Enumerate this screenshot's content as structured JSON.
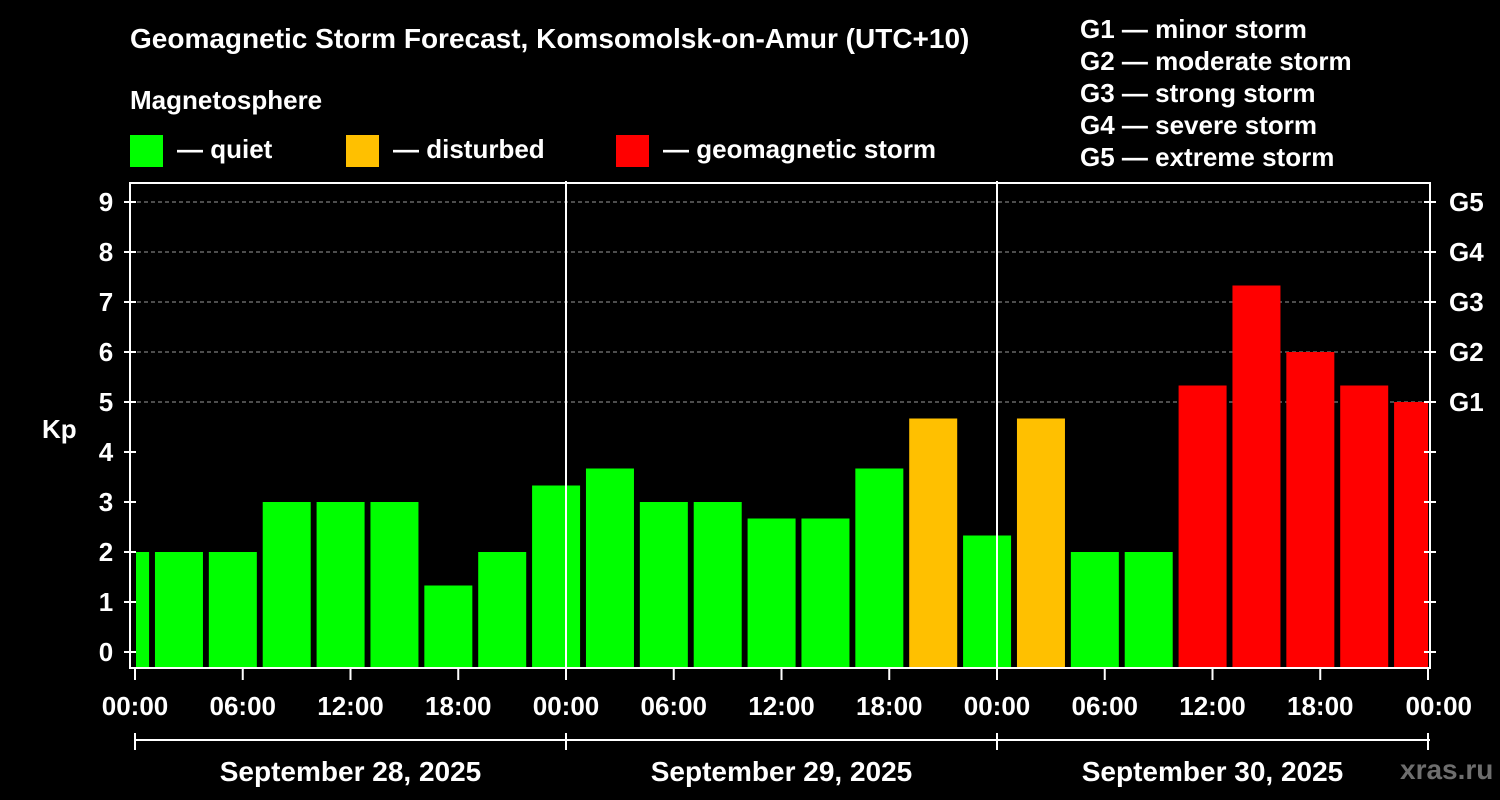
{
  "chart_data": {
    "type": "bar",
    "title": "Geomagnetic Storm Forecast, Komsomolsk-on-Amur (UTC+10)",
    "subtitle": "Magnetosphere",
    "ylabel": "Kp",
    "ylim": [
      0,
      9
    ],
    "yticks": [
      "0",
      "1",
      "2",
      "3",
      "4",
      "5",
      "6",
      "7",
      "8",
      "9"
    ],
    "right_ticks": [
      {
        "kp": 5,
        "label": "G1"
      },
      {
        "kp": 6,
        "label": "G2"
      },
      {
        "kp": 7,
        "label": "G3"
      },
      {
        "kp": 8,
        "label": "G4"
      },
      {
        "kp": 9,
        "label": "G5"
      }
    ],
    "grid": true,
    "x_hours_range": [
      0,
      72
    ],
    "xticks": [
      "00:00",
      "06:00",
      "12:00",
      "18:00",
      "00:00",
      "06:00",
      "12:00",
      "18:00",
      "00:00",
      "06:00",
      "12:00",
      "18:00",
      "00:00"
    ],
    "days": [
      "September 28, 2025",
      "September 29, 2025",
      "September 30, 2025"
    ],
    "legend": [
      {
        "label": "— quiet",
        "color": "#00ff00"
      },
      {
        "label": "— disturbed",
        "color": "#ffc000"
      },
      {
        "label": "— geomagnetic storm",
        "color": "#ff0000"
      }
    ],
    "scale_legend": [
      "G1 — minor storm",
      "G2 — moderate storm",
      "G3 — strong storm",
      "G4 — severe storm",
      "G5 — extreme storm"
    ],
    "bars": [
      {
        "start_hour": -2,
        "kp": 2.0,
        "status": "quiet"
      },
      {
        "start_hour": 1,
        "kp": 2.0,
        "status": "quiet"
      },
      {
        "start_hour": 4,
        "kp": 2.0,
        "status": "quiet"
      },
      {
        "start_hour": 7,
        "kp": 3.0,
        "status": "quiet"
      },
      {
        "start_hour": 10,
        "kp": 3.0,
        "status": "quiet"
      },
      {
        "start_hour": 13,
        "kp": 3.0,
        "status": "quiet"
      },
      {
        "start_hour": 16,
        "kp": 1.33,
        "status": "quiet"
      },
      {
        "start_hour": 19,
        "kp": 2.0,
        "status": "quiet"
      },
      {
        "start_hour": 22,
        "kp": 3.33,
        "status": "quiet"
      },
      {
        "start_hour": 25,
        "kp": 3.67,
        "status": "quiet"
      },
      {
        "start_hour": 28,
        "kp": 3.0,
        "status": "quiet"
      },
      {
        "start_hour": 31,
        "kp": 3.0,
        "status": "quiet"
      },
      {
        "start_hour": 34,
        "kp": 2.67,
        "status": "quiet"
      },
      {
        "start_hour": 37,
        "kp": 2.67,
        "status": "quiet"
      },
      {
        "start_hour": 40,
        "kp": 3.67,
        "status": "quiet"
      },
      {
        "start_hour": 43,
        "kp": 4.67,
        "status": "disturbed"
      },
      {
        "start_hour": 46,
        "kp": 2.33,
        "status": "quiet"
      },
      {
        "start_hour": 49,
        "kp": 4.67,
        "status": "disturbed"
      },
      {
        "start_hour": 52,
        "kp": 2.0,
        "status": "quiet"
      },
      {
        "start_hour": 55,
        "kp": 2.0,
        "status": "quiet"
      },
      {
        "start_hour": 58,
        "kp": 5.33,
        "status": "storm"
      },
      {
        "start_hour": 61,
        "kp": 7.33,
        "status": "storm"
      },
      {
        "start_hour": 64,
        "kp": 6.0,
        "status": "storm"
      },
      {
        "start_hour": 67,
        "kp": 5.33,
        "status": "storm"
      },
      {
        "start_hour": 70,
        "kp": 5.0,
        "status": "storm"
      }
    ],
    "status_colors": {
      "quiet": "#00ff00",
      "disturbed": "#ffc000",
      "storm": "#ff0000"
    },
    "watermark": "xras.ru"
  }
}
